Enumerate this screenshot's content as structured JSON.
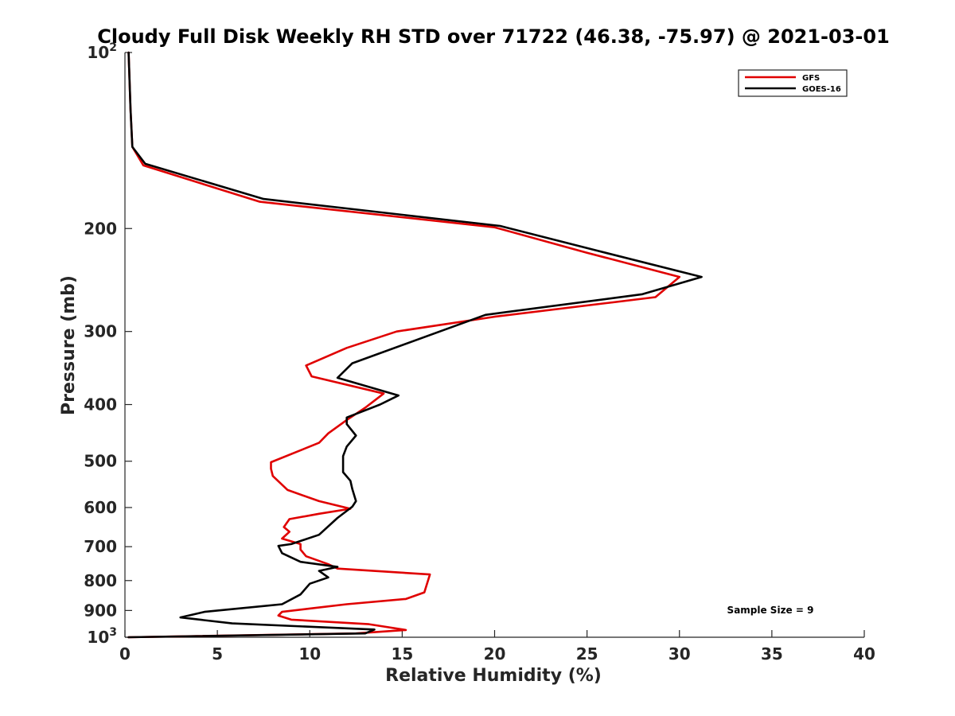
{
  "chart_data": {
    "type": "line",
    "title": "Cloudy Full Disk Weekly RH STD over 71722 (46.38, -75.97) @ 2021-03-01",
    "xlabel": "Relative Humidity (%)",
    "ylabel": "Pressure (mb)",
    "xlim": [
      0,
      40
    ],
    "ylim": [
      100,
      1000
    ],
    "yscale": "log",
    "y_reversed": true,
    "x_ticks": [
      0,
      5,
      10,
      15,
      20,
      25,
      30,
      35,
      40
    ],
    "x_tick_labels": [
      "0",
      "5",
      "10",
      "15",
      "20",
      "25",
      "30",
      "35",
      "40"
    ],
    "y_ticks": [
      100,
      200,
      300,
      400,
      500,
      600,
      700,
      800,
      900,
      1000
    ],
    "y_tick_labels": [
      {
        "base": "10",
        "exp": "2"
      },
      {
        "base": "200"
      },
      {
        "base": "300"
      },
      {
        "base": "400"
      },
      {
        "base": "500"
      },
      {
        "base": "600"
      },
      {
        "base": "700"
      },
      {
        "base": "800"
      },
      {
        "base": "900"
      },
      {
        "base": "10",
        "exp": "3"
      }
    ],
    "grid": false,
    "legend_position": "top-right",
    "annotation": "Sample Size = 9",
    "series": [
      {
        "name": "GFS",
        "color": "#e00000",
        "points": [
          [
            0.2,
            100
          ],
          [
            0.3,
            125
          ],
          [
            0.4,
            145
          ],
          [
            1.0,
            156
          ],
          [
            7.3,
            180
          ],
          [
            20.0,
            199
          ],
          [
            25.0,
            220
          ],
          [
            30.0,
            242
          ],
          [
            28.7,
            262
          ],
          [
            20.0,
            283
          ],
          [
            14.7,
            300
          ],
          [
            12.0,
            320
          ],
          [
            9.8,
            343
          ],
          [
            10.1,
            358
          ],
          [
            14.0,
            383
          ],
          [
            13.0,
            405
          ],
          [
            12.0,
            425
          ],
          [
            11.0,
            448
          ],
          [
            10.5,
            465
          ],
          [
            7.9,
            502
          ],
          [
            7.9,
            515
          ],
          [
            8.0,
            530
          ],
          [
            8.8,
            560
          ],
          [
            10.5,
            585
          ],
          [
            12.2,
            603
          ],
          [
            10.5,
            615
          ],
          [
            8.9,
            628
          ],
          [
            8.6,
            648
          ],
          [
            8.9,
            660
          ],
          [
            8.5,
            678
          ],
          [
            9.5,
            693
          ],
          [
            9.5,
            708
          ],
          [
            9.8,
            727
          ],
          [
            11.0,
            750
          ],
          [
            11.5,
            763
          ],
          [
            16.5,
            781
          ],
          [
            16.2,
            838
          ],
          [
            15.2,
            860
          ],
          [
            12.0,
            878
          ],
          [
            10.0,
            893
          ],
          [
            8.5,
            905
          ],
          [
            8.3,
            918
          ],
          [
            9.0,
            933
          ],
          [
            13.2,
            950
          ],
          [
            15.2,
            972
          ],
          [
            12.5,
            985
          ],
          [
            0.2,
            1000
          ]
        ]
      },
      {
        "name": "GOES-16",
        "color": "#000000",
        "points": [
          [
            0.2,
            100
          ],
          [
            0.3,
            125
          ],
          [
            0.4,
            145
          ],
          [
            1.1,
            155
          ],
          [
            7.5,
            178
          ],
          [
            20.3,
            198
          ],
          [
            25.5,
            218
          ],
          [
            31.2,
            242
          ],
          [
            28.0,
            259
          ],
          [
            19.5,
            281
          ],
          [
            12.3,
            340
          ],
          [
            11.5,
            360
          ],
          [
            14.8,
            386
          ],
          [
            13.8,
            400
          ],
          [
            12.0,
            421
          ],
          [
            12.0,
            432
          ],
          [
            12.5,
            452
          ],
          [
            12.0,
            472
          ],
          [
            11.8,
            490
          ],
          [
            11.8,
            522
          ],
          [
            12.2,
            540
          ],
          [
            12.3,
            558
          ],
          [
            12.5,
            585
          ],
          [
            12.3,
            598
          ],
          [
            11.5,
            625
          ],
          [
            10.5,
            668
          ],
          [
            9.0,
            693
          ],
          [
            8.3,
            698
          ],
          [
            8.5,
            718
          ],
          [
            9.5,
            743
          ],
          [
            11.5,
            758
          ],
          [
            10.5,
            770
          ],
          [
            11.0,
            790
          ],
          [
            10.0,
            810
          ],
          [
            9.5,
            845
          ],
          [
            8.5,
            878
          ],
          [
            4.3,
            905
          ],
          [
            3.0,
            925
          ],
          [
            5.8,
            947
          ],
          [
            13.5,
            970
          ],
          [
            13.0,
            985
          ],
          [
            0.2,
            1000
          ]
        ]
      }
    ]
  }
}
